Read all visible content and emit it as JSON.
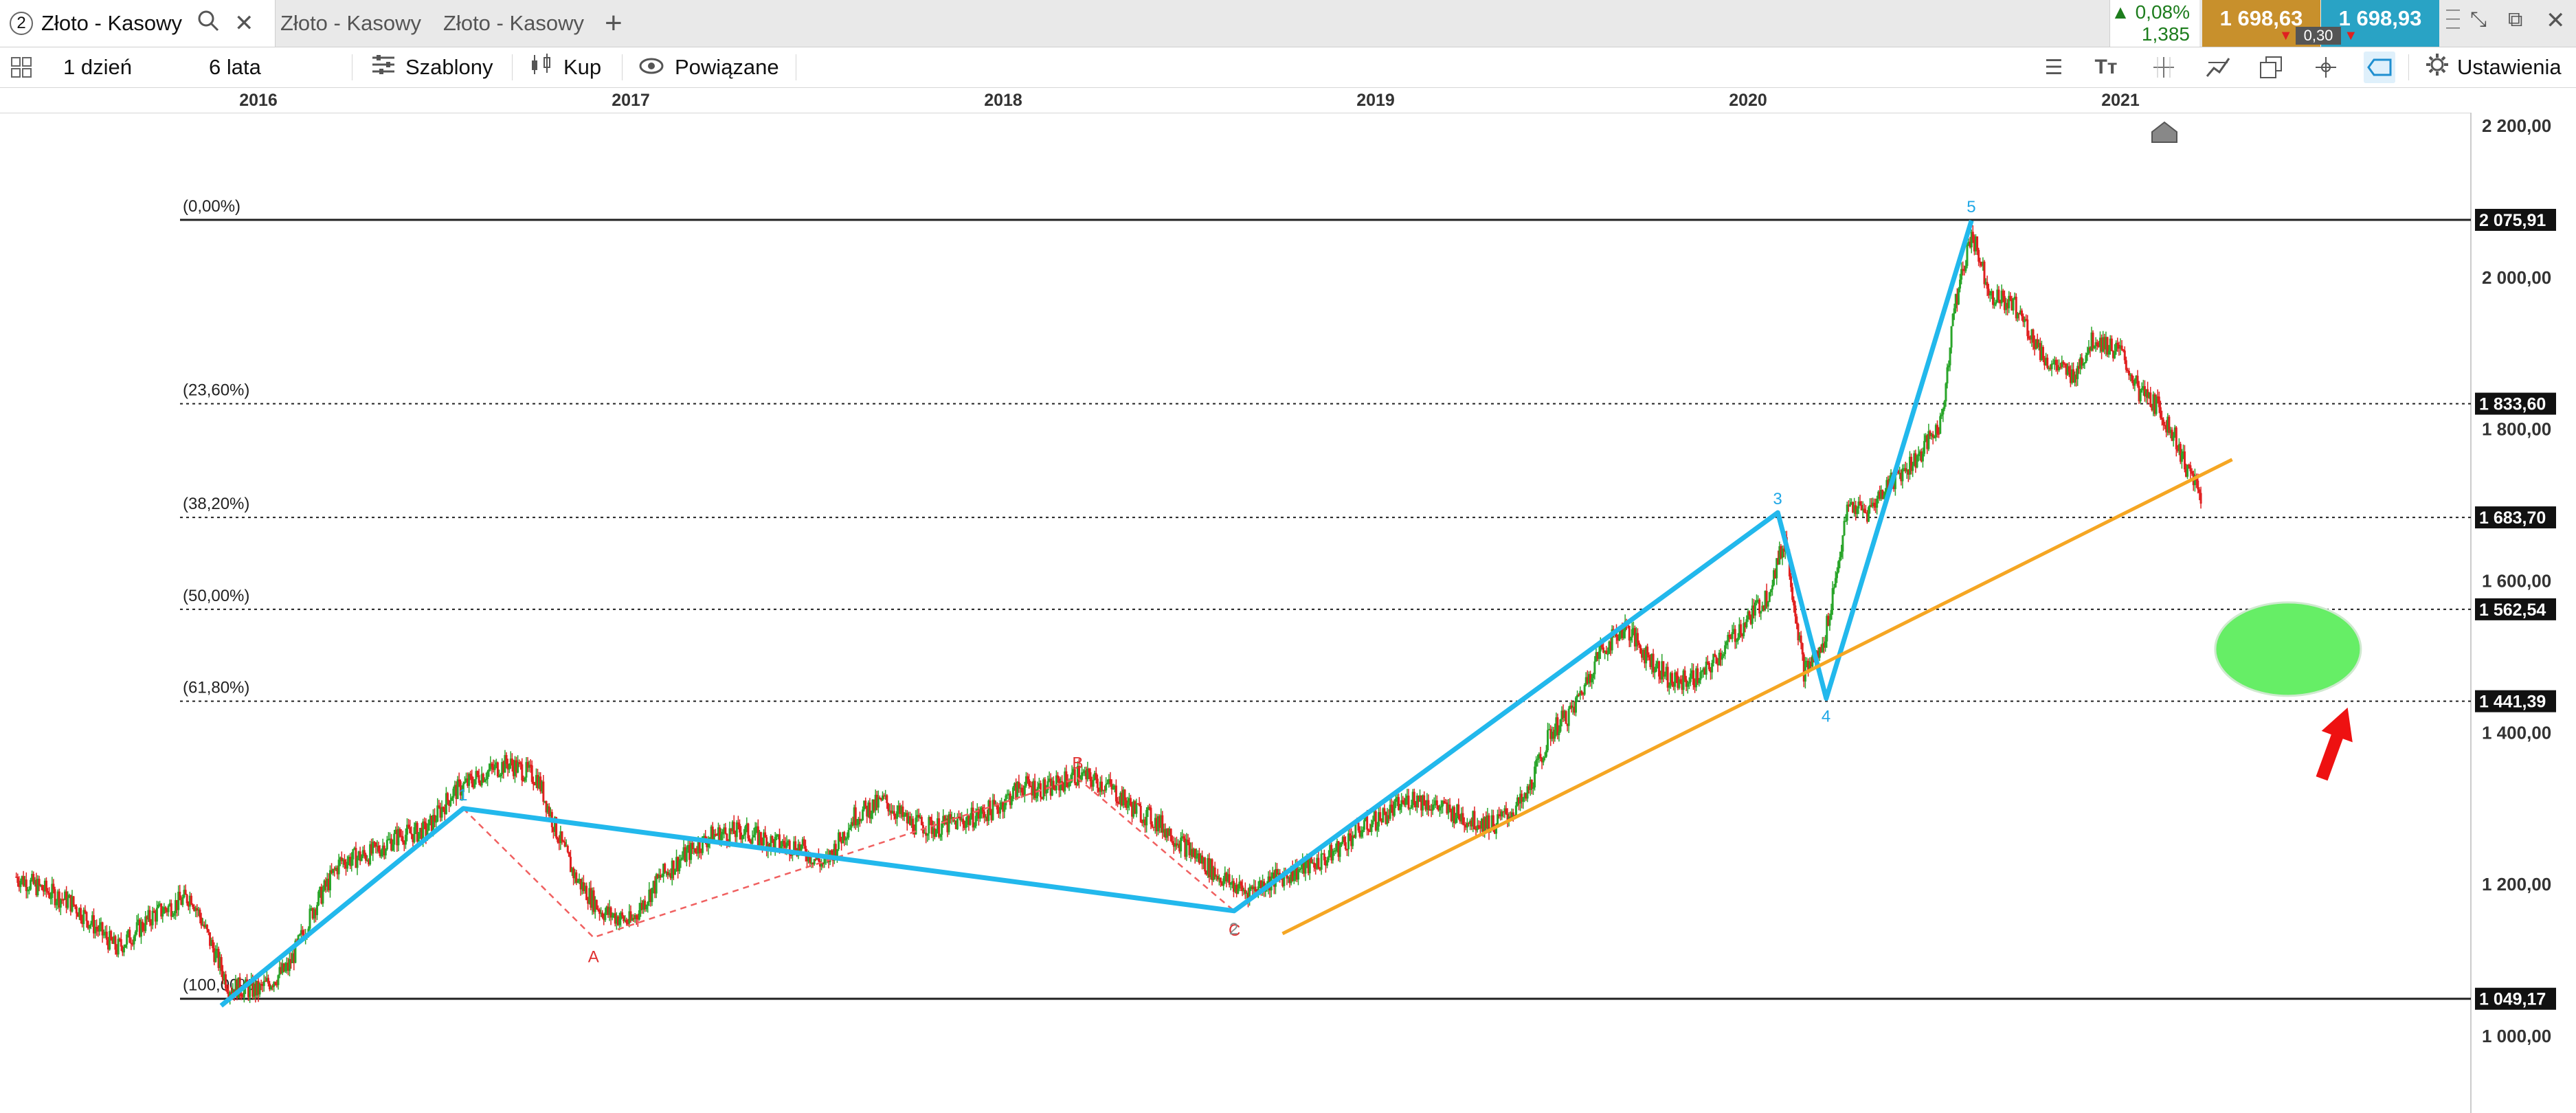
{
  "tabs": [
    {
      "num": "2",
      "label": "Złoto - Kasowy",
      "active": true
    },
    {
      "label": "Złoto - Kasowy"
    },
    {
      "label": "Złoto - Kasowy"
    }
  ],
  "quote": {
    "change_pct": "0,08%",
    "change_abs": "1,385",
    "bid": "1 698,63",
    "ask": "1 698,93",
    "spread": "0,30",
    "bid_color": "#c8902c",
    "ask_color": "#29a3c5"
  },
  "toolbar": {
    "interval": "1 dzień",
    "range": "6 lata",
    "template": "Szablony",
    "buy": "Kup",
    "related": "Powiązane",
    "settings": "Ustawienia"
  },
  "time_axis": [
    "2016",
    "2017",
    "2018",
    "2019",
    "2020",
    "2021"
  ],
  "chart_data": {
    "type": "candlestick",
    "y_axis_ticks": [
      "2 200,00",
      "2 000,00",
      "1 800,00",
      "1 600,00",
      "1 400,00",
      "1 200,00",
      "1 000,00"
    ],
    "y_ticks_values": [
      2200,
      2000,
      1800,
      1600,
      1400,
      1200,
      1000
    ],
    "ylim": [
      950,
      2240
    ],
    "colors": {
      "up": "#2aa52a",
      "down": "#e02020",
      "wave": "#22b8ec",
      "corrective": "#f06060",
      "trend": "#f5a623",
      "target": "#66ee66"
    },
    "fib_levels": [
      {
        "label": "(0,00%)",
        "value": 2075.91,
        "tag": "2 075,91",
        "style": "solid"
      },
      {
        "label": "(23,60%)",
        "value": 1833.6,
        "tag": "1 833,60",
        "style": "dotted"
      },
      {
        "label": "(38,20%)",
        "value": 1683.7,
        "tag": "1 683,70",
        "style": "dotted"
      },
      {
        "label": "(50,00%)",
        "value": 1562.54,
        "tag": "1 562,54",
        "style": "dotted"
      },
      {
        "label": "(61,80%)",
        "value": 1441.39,
        "tag": "1 441,39",
        "style": "dotted"
      },
      {
        "label": "(100,00%)",
        "value": 1049.17,
        "tag": "1 049,17",
        "style": "solid"
      }
    ],
    "impulse_wave": [
      {
        "date": 2015.9,
        "price": 1040,
        "label": ""
      },
      {
        "date": 2016.55,
        "price": 1300,
        "label": "1"
      },
      {
        "date": 2018.62,
        "price": 1165,
        "label": "2"
      },
      {
        "date": 2020.08,
        "price": 1690,
        "label": "3"
      },
      {
        "date": 2020.21,
        "price": 1445,
        "label": "4"
      },
      {
        "date": 2020.6,
        "price": 2075,
        "label": "5"
      }
    ],
    "corrective_wave": [
      {
        "date": 2016.55,
        "price": 1300,
        "label": ""
      },
      {
        "date": 2016.9,
        "price": 1130,
        "label": "A"
      },
      {
        "date": 2018.2,
        "price": 1340,
        "label": "B"
      },
      {
        "date": 2018.62,
        "price": 1165,
        "label": "C"
      }
    ],
    "trendline": [
      {
        "date": 2018.75,
        "price": 1135
      },
      {
        "date": 2021.3,
        "price": 1760
      }
    ],
    "price_series": [
      [
        2015.35,
        1210
      ],
      [
        2015.5,
        1175
      ],
      [
        2015.62,
        1115
      ],
      [
        2015.72,
        1160
      ],
      [
        2015.82,
        1185
      ],
      [
        2015.92,
        1065
      ],
      [
        2016.0,
        1060
      ],
      [
        2016.08,
        1090
      ],
      [
        2016.15,
        1170
      ],
      [
        2016.22,
        1230
      ],
      [
        2016.3,
        1240
      ],
      [
        2016.38,
        1265
      ],
      [
        2016.45,
        1270
      ],
      [
        2016.52,
        1320
      ],
      [
        2016.6,
        1345
      ],
      [
        2016.67,
        1360
      ],
      [
        2016.75,
        1340
      ],
      [
        2016.8,
        1270
      ],
      [
        2016.85,
        1210
      ],
      [
        2016.92,
        1165
      ],
      [
        2017.0,
        1150
      ],
      [
        2017.08,
        1210
      ],
      [
        2017.15,
        1240
      ],
      [
        2017.22,
        1265
      ],
      [
        2017.3,
        1270
      ],
      [
        2017.38,
        1255
      ],
      [
        2017.45,
        1250
      ],
      [
        2017.52,
        1225
      ],
      [
        2017.6,
        1290
      ],
      [
        2017.68,
        1310
      ],
      [
        2017.75,
        1280
      ],
      [
        2017.82,
        1275
      ],
      [
        2017.9,
        1285
      ],
      [
        2017.98,
        1300
      ],
      [
        2018.05,
        1330
      ],
      [
        2018.12,
        1325
      ],
      [
        2018.2,
        1345
      ],
      [
        2018.28,
        1330
      ],
      [
        2018.35,
        1300
      ],
      [
        2018.42,
        1280
      ],
      [
        2018.5,
        1245
      ],
      [
        2018.58,
        1210
      ],
      [
        2018.65,
        1190
      ],
      [
        2018.72,
        1205
      ],
      [
        2018.8,
        1220
      ],
      [
        2018.87,
        1235
      ],
      [
        2018.95,
        1270
      ],
      [
        2019.02,
        1290
      ],
      [
        2019.1,
        1315
      ],
      [
        2019.18,
        1300
      ],
      [
        2019.25,
        1285
      ],
      [
        2019.32,
        1280
      ],
      [
        2019.4,
        1310
      ],
      [
        2019.47,
        1400
      ],
      [
        2019.53,
        1430
      ],
      [
        2019.6,
        1505
      ],
      [
        2019.67,
        1540
      ],
      [
        2019.73,
        1500
      ],
      [
        2019.8,
        1465
      ],
      [
        2019.88,
        1475
      ],
      [
        2019.95,
        1520
      ],
      [
        2020.0,
        1550
      ],
      [
        2020.05,
        1580
      ],
      [
        2020.1,
        1655
      ],
      [
        2020.15,
        1480
      ],
      [
        2020.2,
        1510
      ],
      [
        2020.27,
        1700
      ],
      [
        2020.32,
        1690
      ],
      [
        2020.38,
        1730
      ],
      [
        2020.45,
        1760
      ],
      [
        2020.52,
        1810
      ],
      [
        2020.55,
        1950
      ],
      [
        2020.6,
        2060
      ],
      [
        2020.65,
        1980
      ],
      [
        2020.72,
        1960
      ],
      [
        2020.8,
        1890
      ],
      [
        2020.87,
        1870
      ],
      [
        2020.93,
        1920
      ],
      [
        2021.0,
        1900
      ],
      [
        2021.05,
        1850
      ],
      [
        2021.1,
        1830
      ],
      [
        2021.15,
        1785
      ],
      [
        2021.18,
        1745
      ],
      [
        2021.2,
        1730
      ],
      [
        2021.22,
        1698
      ]
    ],
    "target_zone": {
      "date": 2021.45,
      "price": 1510
    },
    "arrow_hint": {
      "date": 2021.52,
      "price": 1350
    }
  }
}
